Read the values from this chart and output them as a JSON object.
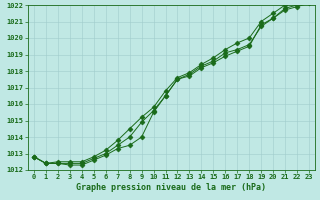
{
  "x": [
    0,
    1,
    2,
    3,
    4,
    5,
    6,
    7,
    8,
    9,
    10,
    11,
    12,
    13,
    14,
    15,
    16,
    17,
    18,
    19,
    20,
    21,
    22,
    23
  ],
  "line1": [
    1012.8,
    1012.4,
    1012.4,
    1012.4,
    1012.4,
    1012.7,
    1013.0,
    1013.5,
    1014.0,
    1014.9,
    1015.6,
    1016.5,
    1017.5,
    1017.7,
    1018.2,
    1018.5,
    1018.9,
    1019.2,
    1019.5,
    1020.8,
    1021.2,
    1021.8,
    1022.0,
    1022.2
  ],
  "line2": [
    1012.8,
    1012.4,
    1012.4,
    1012.3,
    1012.3,
    1012.6,
    1012.9,
    1013.3,
    1013.5,
    1014.0,
    1015.5,
    1016.5,
    1017.5,
    1017.8,
    1018.3,
    1018.6,
    1019.1,
    1019.3,
    1019.6,
    1020.7,
    1021.2,
    1021.7,
    1021.9,
    1022.1
  ],
  "line3": [
    1012.8,
    1012.4,
    1012.5,
    1012.5,
    1012.5,
    1012.8,
    1013.2,
    1013.8,
    1014.5,
    1015.2,
    1015.8,
    1016.8,
    1017.6,
    1017.9,
    1018.4,
    1018.8,
    1019.3,
    1019.7,
    1020.0,
    1021.0,
    1021.5,
    1022.0,
    1022.2,
    1022.4
  ],
  "line_color": "#1a6b1a",
  "bg_color": "#c0e8e4",
  "grid_color": "#a0cccc",
  "xlabel": "Graphe pression niveau de la mer (hPa)",
  "ylim_min": 1012,
  "ylim_max": 1022,
  "xlim_min": -0.5,
  "xlim_max": 23.5,
  "yticks": [
    1012,
    1013,
    1014,
    1015,
    1016,
    1017,
    1018,
    1019,
    1020,
    1021,
    1022
  ],
  "xticks": [
    0,
    1,
    2,
    3,
    4,
    5,
    6,
    7,
    8,
    9,
    10,
    11,
    12,
    13,
    14,
    15,
    16,
    17,
    18,
    19,
    20,
    21,
    22,
    23
  ],
  "tick_fontsize": 5,
  "xlabel_fontsize": 6,
  "linewidth": 0.7,
  "markersize": 2.5
}
